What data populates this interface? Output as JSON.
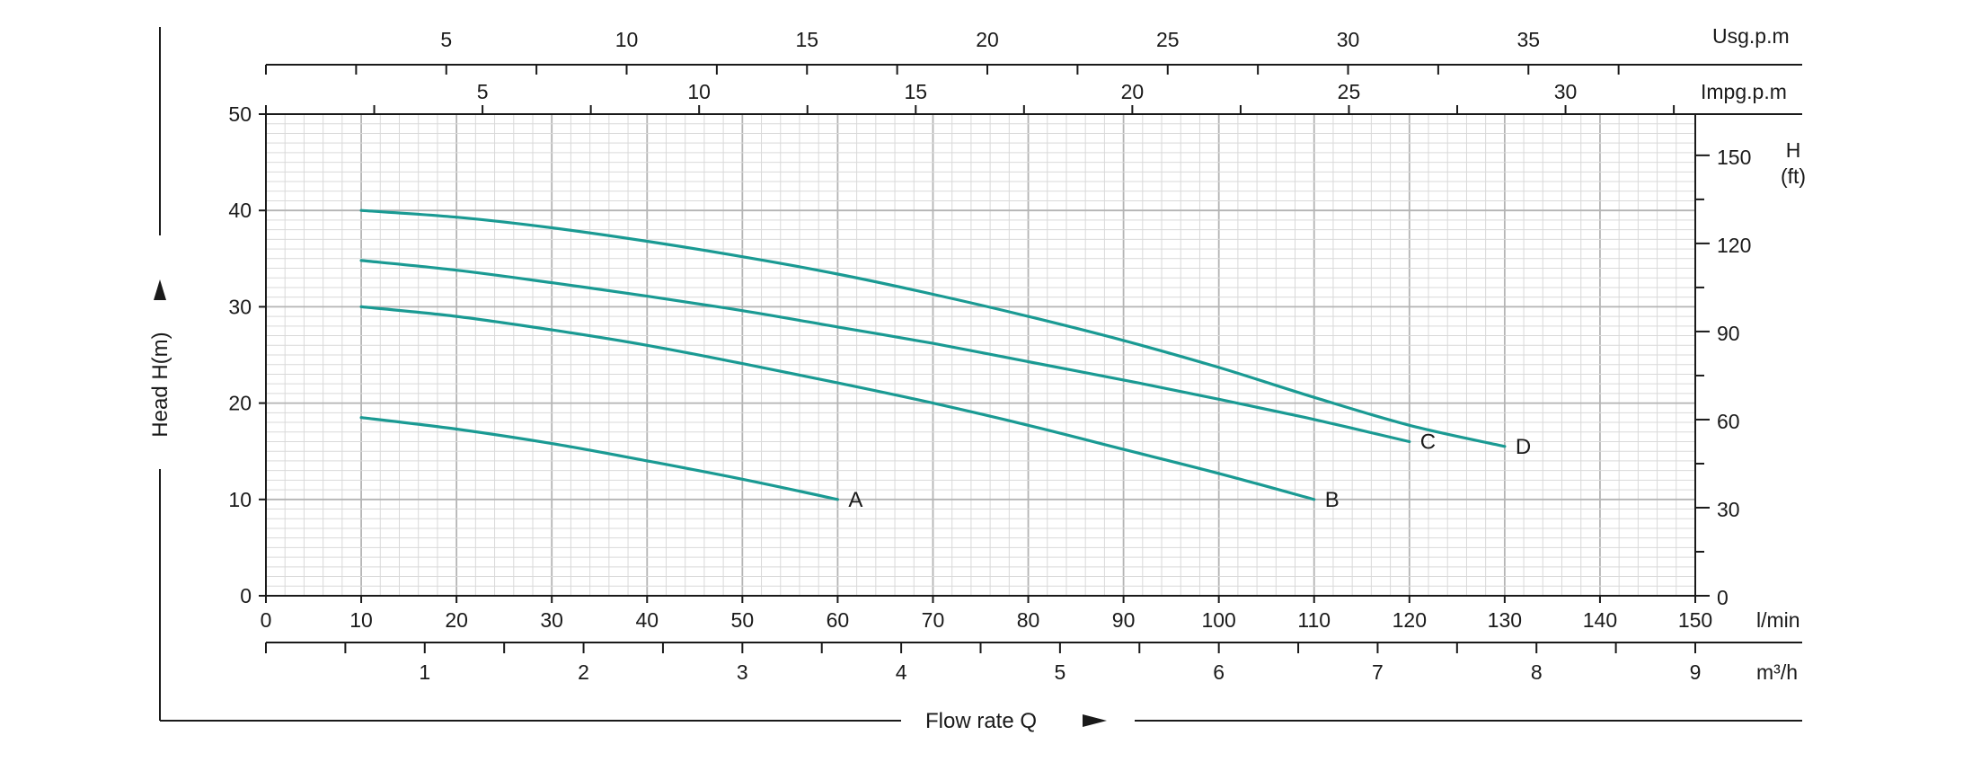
{
  "chart_data": {
    "type": "line",
    "x_axis": {
      "label": "l/min",
      "range": [
        0,
        150
      ],
      "ticks": [
        0,
        10,
        20,
        30,
        40,
        50,
        60,
        70,
        80,
        90,
        100,
        110,
        120,
        130,
        140,
        150
      ]
    },
    "y_axis": {
      "range": [
        0,
        50
      ],
      "ticks": [
        0,
        10,
        20,
        30,
        40,
        50
      ]
    },
    "y_axis_right": {
      "label_line1": "H",
      "label_line2": "(ft)",
      "range_ft": [
        0,
        164.04
      ],
      "ticks": [
        0,
        30,
        60,
        90,
        120,
        150
      ]
    },
    "x_axis_m3h": {
      "label": "m³/h",
      "ticks": [
        1,
        2,
        3,
        4,
        5,
        6,
        7,
        8,
        9
      ]
    },
    "x_axis_usgpm": {
      "label": "Usg.p.m",
      "ticks": [
        5,
        10,
        15,
        20,
        25,
        30,
        35
      ]
    },
    "x_axis_impgpm": {
      "label": "Impg.p.m",
      "ticks": [
        5,
        10,
        15,
        20,
        25,
        30
      ]
    },
    "y_title": "Head H(m)",
    "x_title": "Flow rate Q",
    "grid": true,
    "series": [
      {
        "name": "A",
        "color": "#1a9a93",
        "x": [
          10,
          20,
          30,
          40,
          50,
          60
        ],
        "y": [
          18.5,
          17.3,
          15.8,
          14.0,
          12.1,
          10.0
        ]
      },
      {
        "name": "B",
        "color": "#1a9a93",
        "x": [
          10,
          20,
          30,
          40,
          50,
          60,
          70,
          80,
          90,
          100,
          110
        ],
        "y": [
          30.0,
          29.0,
          27.6,
          26.0,
          24.1,
          22.1,
          20.0,
          17.7,
          15.2,
          12.7,
          10.0
        ]
      },
      {
        "name": "C",
        "color": "#1a9a93",
        "x": [
          10,
          20,
          30,
          40,
          50,
          60,
          70,
          80,
          90,
          100,
          110,
          120
        ],
        "y": [
          34.8,
          33.8,
          32.5,
          31.1,
          29.6,
          27.9,
          26.2,
          24.3,
          22.4,
          20.4,
          18.3,
          16.0
        ]
      },
      {
        "name": "D",
        "color": "#1a9a93",
        "x": [
          10,
          20,
          30,
          40,
          50,
          60,
          70,
          80,
          90,
          100,
          110,
          120,
          130
        ],
        "y": [
          40.0,
          39.3,
          38.2,
          36.8,
          35.2,
          33.4,
          31.3,
          29.0,
          26.5,
          23.7,
          20.6,
          17.7,
          15.5
        ]
      }
    ]
  }
}
